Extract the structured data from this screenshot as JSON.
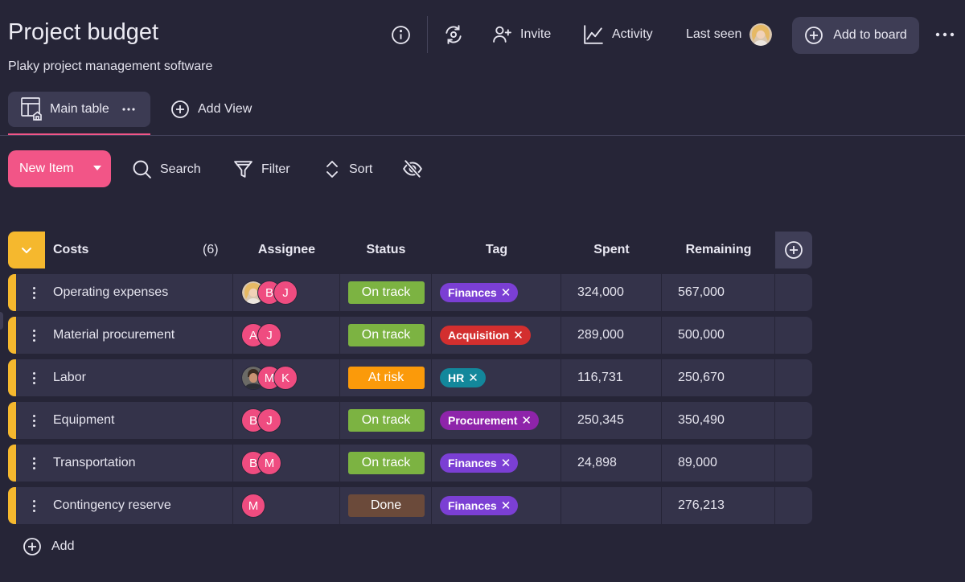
{
  "header": {
    "title": "Project budget",
    "subtitle": "Plaky project management software",
    "invite_label": "Invite",
    "activity_label": "Activity",
    "last_seen_label": "Last seen",
    "add_to_board_label": "Add to board"
  },
  "views": {
    "main_table_label": "Main table",
    "add_view_label": "Add View"
  },
  "toolbar": {
    "new_item_label": "New Item",
    "search_label": "Search",
    "filter_label": "Filter",
    "sort_label": "Sort"
  },
  "table": {
    "group_name": "Costs",
    "group_count": "(6)",
    "columns": {
      "assignee": "Assignee",
      "status": "Status",
      "tag": "Tag",
      "spent": "Spent",
      "remaining": "Remaining"
    },
    "rows": [
      {
        "name": "Operating expenses",
        "avatars": [
          "photo-woman",
          "B",
          "J"
        ],
        "status": "On track",
        "status_color": "#7cb342",
        "tag": "Finances",
        "tag_color": "#7b3fd4",
        "spent": "324,000",
        "remaining": "567,000"
      },
      {
        "name": "Material procurement",
        "avatars": [
          "A",
          "J"
        ],
        "status": "On track",
        "status_color": "#7cb342",
        "tag": "Acquisition",
        "tag_color": "#d32f2f",
        "spent": "289,000",
        "remaining": "500,000"
      },
      {
        "name": "Labor",
        "avatars": [
          "photo-man",
          "M",
          "K"
        ],
        "status": "At risk",
        "status_color": "#fb9a0a",
        "tag": "HR",
        "tag_color": "#13879b",
        "spent": "116,731",
        "remaining": "250,670"
      },
      {
        "name": "Equipment",
        "avatars": [
          "B",
          "J"
        ],
        "status": "On track",
        "status_color": "#7cb342",
        "tag": "Procurement",
        "tag_color": "#8e24aa",
        "spent": "250,345",
        "remaining": "350,490"
      },
      {
        "name": "Transportation",
        "avatars": [
          "B",
          "M"
        ],
        "status": "On track",
        "status_color": "#7cb342",
        "tag": "Finances",
        "tag_color": "#7b3fd4",
        "spent": "24,898",
        "remaining": "89,000"
      },
      {
        "name": "Contingency reserve",
        "avatars": [
          "M"
        ],
        "status": "Done",
        "status_color": "#6b4a3a",
        "tag": "Finances",
        "tag_color": "#7b3fd4",
        "spent": "",
        "remaining": "276,213"
      }
    ],
    "add_label": "Add"
  },
  "colors": {
    "background": "#262537",
    "accent": "#f25587",
    "group": "#f5b82e"
  },
  "icons": [
    "info-icon",
    "sync-icon",
    "person-add-icon",
    "activity-chart-icon",
    "plus-circle-icon",
    "more-horizontal-icon",
    "table-view-icon",
    "search-icon",
    "filter-icon",
    "sort-icon",
    "eye-off-icon",
    "chevron-down-icon"
  ]
}
